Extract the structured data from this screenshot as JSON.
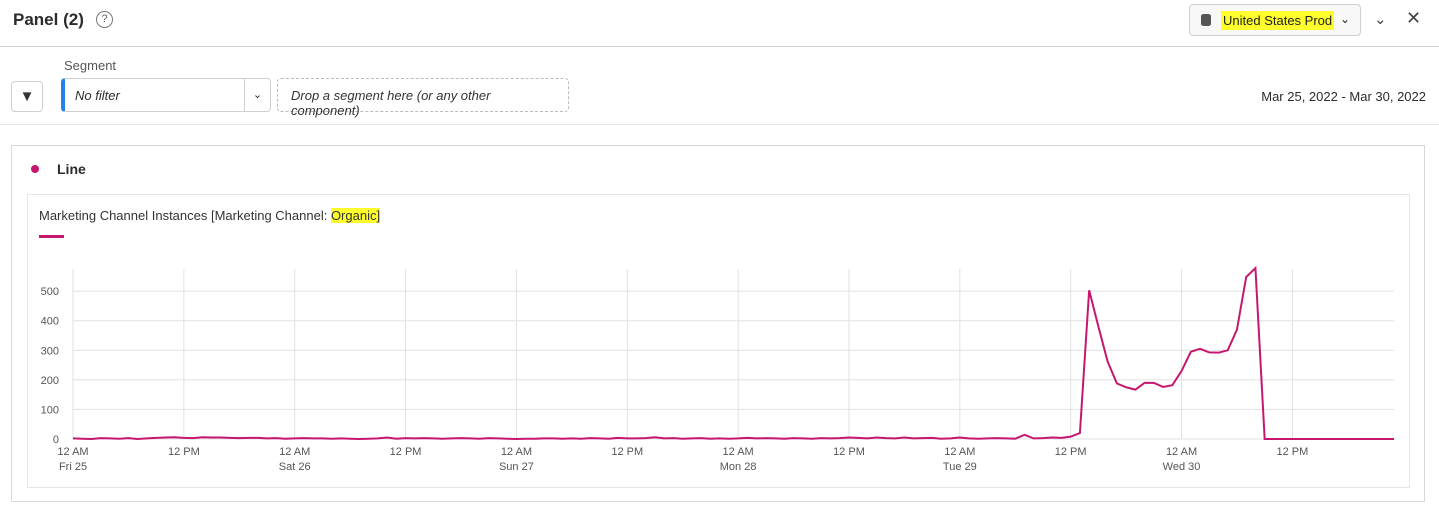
{
  "header": {
    "title": "Panel (2)",
    "report_suite": "United States Prod"
  },
  "segment": {
    "label": "Segment",
    "value": "No filter",
    "drop_placeholder": "Drop a segment here (or any other component)",
    "date_range": "Mar 25, 2022 - Mar 30, 2022"
  },
  "visualization": {
    "title": "Line",
    "metric_prefix": "Marketing Channel Instances [Marketing Channel: ",
    "metric_highlight": "Organic]",
    "color": "#c5176e"
  },
  "chart_data": {
    "type": "line",
    "ylim": [
      0,
      575
    ],
    "y_ticks": [
      0,
      100,
      200,
      300,
      400,
      500
    ],
    "x_ticks": [
      {
        "hour": 0,
        "label": "12 AM",
        "sub": "Fri 25"
      },
      {
        "hour": 12,
        "label": "12 PM"
      },
      {
        "hour": 24,
        "label": "12 AM",
        "sub": "Sat 26"
      },
      {
        "hour": 36,
        "label": "12 PM"
      },
      {
        "hour": 48,
        "label": "12 AM",
        "sub": "Sun 27"
      },
      {
        "hour": 60,
        "label": "12 PM"
      },
      {
        "hour": 72,
        "label": "12 AM",
        "sub": "Mon 28"
      },
      {
        "hour": 84,
        "label": "12 PM"
      },
      {
        "hour": 96,
        "label": "12 AM",
        "sub": "Tue 29"
      },
      {
        "hour": 108,
        "label": "12 PM"
      },
      {
        "hour": 120,
        "label": "12 AM",
        "sub": "Wed 30"
      },
      {
        "hour": 132,
        "label": "12 PM"
      }
    ],
    "grid": true,
    "series": [
      {
        "name": "Marketing Channel Instances [Marketing Channel: Organic]",
        "values": [
          2,
          1,
          0,
          3,
          2,
          1,
          3,
          0,
          2,
          4,
          5,
          6,
          4,
          3,
          6,
          5,
          5,
          4,
          3,
          4,
          4,
          2,
          3,
          1,
          2,
          3,
          2,
          2,
          1,
          2,
          1,
          0,
          1,
          2,
          5,
          1,
          3,
          2,
          3,
          2,
          1,
          2,
          3,
          2,
          1,
          3,
          2,
          1,
          0,
          1,
          1,
          2,
          2,
          1,
          2,
          1,
          3,
          2,
          1,
          4,
          2,
          2,
          3,
          6,
          2,
          3,
          1,
          2,
          3,
          1,
          2,
          1,
          2,
          4,
          2,
          3,
          2,
          1,
          3,
          2,
          1,
          3,
          2,
          3,
          5,
          4,
          2,
          5,
          3,
          2,
          5,
          2,
          3,
          4,
          1,
          2,
          5,
          2,
          1,
          2,
          3,
          2,
          1,
          14,
          2,
          3,
          5,
          4,
          8,
          20,
          503,
          380,
          262,
          188,
          175,
          167,
          190,
          190,
          176,
          182,
          230,
          295,
          305,
          293,
          292,
          300,
          370,
          548,
          578,
          0,
          0,
          0,
          0,
          0,
          0,
          0,
          0,
          0,
          0,
          0,
          0,
          0,
          0,
          0
        ]
      }
    ]
  }
}
